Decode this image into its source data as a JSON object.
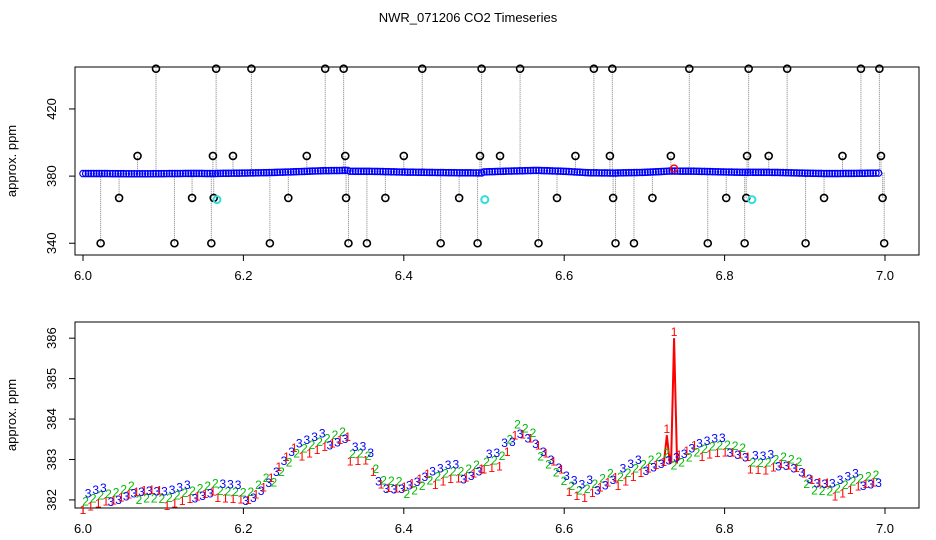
{
  "title": "NWR_071206  CO2 Timeseries",
  "chart_data": [
    {
      "type": "scatter",
      "panel": "top",
      "ylabel": "approx. ppm",
      "xlim": [
        6.0,
        7.0
      ],
      "ylim": [
        333,
        445
      ],
      "xticks": [
        "6.0",
        "6.2",
        "6.4",
        "6.6",
        "6.8",
        "7.0"
      ],
      "yticks": [
        "340",
        "380",
        "420"
      ],
      "colors": {
        "baseline": "#0000ff",
        "marker": "#000000",
        "drop": "#808080",
        "highlight": "#33dddd",
        "flag": "#ff0000"
      },
      "segments": [
        {
          "x0": 6.0,
          "x1": 6.165,
          "values": [
            381.5,
            381.5,
            381.4,
            381.4,
            381.5,
            381.6,
            381.5
          ]
        },
        {
          "x0": 6.168,
          "x1": 6.33,
          "values": [
            381.6,
            381.8,
            382.1,
            382.6,
            383.2,
            383.4
          ]
        },
        {
          "x0": 6.333,
          "x1": 6.497,
          "values": [
            382.9,
            382.8,
            382.4,
            382.2,
            382.0,
            381.9
          ]
        },
        {
          "x0": 6.5,
          "x1": 6.664,
          "values": [
            382.5,
            383.0,
            383.4,
            382.9,
            382.0,
            381.8
          ]
        },
        {
          "x0": 6.667,
          "x1": 6.829,
          "values": [
            381.9,
            382.2,
            383.0,
            382.9,
            382.5,
            382.2
          ]
        },
        {
          "x0": 6.832,
          "x1": 6.992,
          "values": [
            382.3,
            382.2,
            381.8,
            381.5,
            381.6,
            381.8
          ]
        }
      ],
      "spikes": [
        {
          "x": 6.022,
          "y": 340
        },
        {
          "x": 6.045,
          "y": 367
        },
        {
          "x": 6.068,
          "y": 392
        },
        {
          "x": 6.091,
          "y": 444
        },
        {
          "x": 6.114,
          "y": 340
        },
        {
          "x": 6.136,
          "y": 367
        },
        {
          "x": 6.16,
          "y": 340
        },
        {
          "x": 6.162,
          "y": 392
        },
        {
          "x": 6.163,
          "y": 367
        },
        {
          "x": 6.166,
          "y": 444
        },
        {
          "x": 6.187,
          "y": 392
        },
        {
          "x": 6.21,
          "y": 444
        },
        {
          "x": 6.233,
          "y": 340
        },
        {
          "x": 6.256,
          "y": 367
        },
        {
          "x": 6.279,
          "y": 392
        },
        {
          "x": 6.302,
          "y": 444
        },
        {
          "x": 6.325,
          "y": 444
        },
        {
          "x": 6.327,
          "y": 392
        },
        {
          "x": 6.328,
          "y": 367
        },
        {
          "x": 6.331,
          "y": 340
        },
        {
          "x": 6.354,
          "y": 340
        },
        {
          "x": 6.377,
          "y": 367
        },
        {
          "x": 6.4,
          "y": 392
        },
        {
          "x": 6.423,
          "y": 444
        },
        {
          "x": 6.446,
          "y": 340
        },
        {
          "x": 6.469,
          "y": 367
        },
        {
          "x": 6.492,
          "y": 340
        },
        {
          "x": 6.495,
          "y": 392
        },
        {
          "x": 6.497,
          "y": 444
        },
        {
          "x": 6.52,
          "y": 392
        },
        {
          "x": 6.545,
          "y": 444
        },
        {
          "x": 6.568,
          "y": 340
        },
        {
          "x": 6.591,
          "y": 367
        },
        {
          "x": 6.614,
          "y": 392
        },
        {
          "x": 6.637,
          "y": 444
        },
        {
          "x": 6.657,
          "y": 392
        },
        {
          "x": 6.66,
          "y": 444
        },
        {
          "x": 6.661,
          "y": 367
        },
        {
          "x": 6.664,
          "y": 340
        },
        {
          "x": 6.687,
          "y": 340
        },
        {
          "x": 6.71,
          "y": 367
        },
        {
          "x": 6.733,
          "y": 392
        },
        {
          "x": 6.756,
          "y": 444
        },
        {
          "x": 6.779,
          "y": 340
        },
        {
          "x": 6.802,
          "y": 367
        },
        {
          "x": 6.825,
          "y": 340
        },
        {
          "x": 6.827,
          "y": 367
        },
        {
          "x": 6.828,
          "y": 392
        },
        {
          "x": 6.83,
          "y": 444
        },
        {
          "x": 6.855,
          "y": 392
        },
        {
          "x": 6.878,
          "y": 444
        },
        {
          "x": 6.901,
          "y": 340
        },
        {
          "x": 6.924,
          "y": 367
        },
        {
          "x": 6.947,
          "y": 392
        },
        {
          "x": 6.97,
          "y": 444
        },
        {
          "x": 6.993,
          "y": 444
        },
        {
          "x": 6.995,
          "y": 392
        },
        {
          "x": 6.997,
          "y": 367
        },
        {
          "x": 6.999,
          "y": 340
        }
      ],
      "highlights": [
        {
          "x": 6.167,
          "y": 366
        },
        {
          "x": 6.501,
          "y": 366
        },
        {
          "x": 6.834,
          "y": 366
        }
      ],
      "flags": [
        {
          "x": 6.737,
          "y": 384.5
        }
      ]
    },
    {
      "type": "line",
      "panel": "bottom",
      "ylabel": "approx. ppm",
      "xlim": [
        6.0,
        7.0
      ],
      "ylim": [
        381.8,
        386.4
      ],
      "xticks": [
        "6.0",
        "6.2",
        "6.4",
        "6.6",
        "6.8",
        "7.0"
      ],
      "yticks": [
        "382",
        "383",
        "384",
        "385",
        "386"
      ],
      "colors": {
        "s1": "#ff0000",
        "s2": "#00bb00",
        "s3": "#0000ff"
      },
      "segments": [
        {
          "x0": 6.0,
          "x1": 6.165,
          "values": [
            382.0,
            382.1,
            382.1,
            382.2,
            382.2,
            382.1,
            382.15,
            382.2,
            382.25
          ]
        },
        {
          "x0": 6.168,
          "x1": 6.33,
          "values": [
            382.3,
            382.2,
            382.1,
            382.4,
            382.9,
            383.3,
            383.4,
            383.5,
            383.6
          ]
        },
        {
          "x0": 6.333,
          "x1": 6.497,
          "values": [
            383.2,
            383.15,
            382.4,
            382.3,
            382.4,
            382.6,
            382.7,
            382.65,
            382.8
          ]
        },
        {
          "x0": 6.5,
          "x1": 6.664,
          "values": [
            383.0,
            383.0,
            383.8,
            383.5,
            383.0,
            382.5,
            382.2,
            382.4,
            382.6
          ]
        },
        {
          "x0": 6.667,
          "x1": 6.829,
          "values": [
            382.6,
            382.75,
            382.9,
            383.0,
            383.1,
            383.3,
            383.35,
            383.3,
            383.1
          ]
        },
        {
          "x0": 6.832,
          "x1": 6.992,
          "values": [
            383.0,
            382.9,
            383.0,
            382.8,
            382.4,
            382.3,
            382.4,
            382.5,
            382.5
          ]
        }
      ],
      "spikes": [
        {
          "x": 6.728,
          "y": 383.6,
          "series": "1"
        },
        {
          "x": 6.737,
          "y": 386.0,
          "series": "1"
        }
      ],
      "point_labels": [
        "1",
        "2",
        "3"
      ]
    }
  ]
}
